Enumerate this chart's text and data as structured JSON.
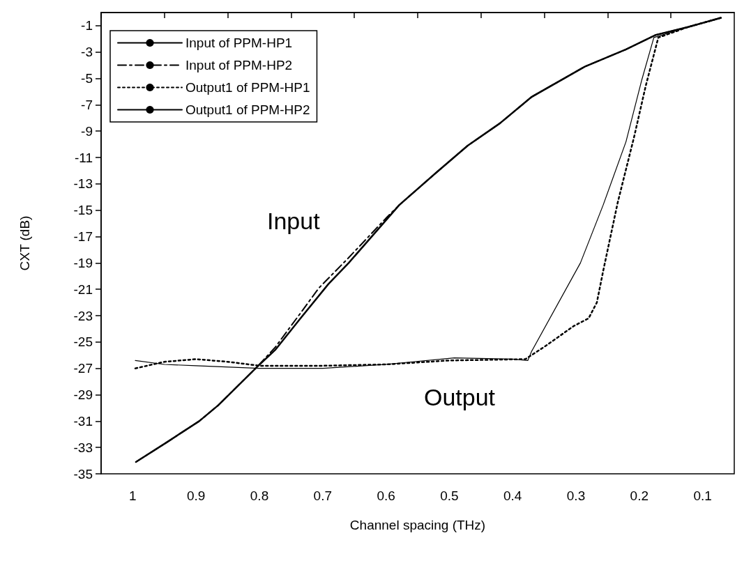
{
  "chart_data": {
    "type": "line",
    "xlabel": "Channel spacing (THz)",
    "ylabel": "CXT (dB)",
    "xlim": [
      1.05,
      0.05
    ],
    "ylim": [
      -35,
      0
    ],
    "xticks": [
      {
        "value": 1.05,
        "label": null
      },
      {
        "value": 1,
        "label": "1"
      },
      {
        "value": 0.95,
        "label": null
      },
      {
        "value": 0.9,
        "label": "0.9"
      },
      {
        "value": 0.85,
        "label": null
      },
      {
        "value": 0.8,
        "label": "0.8"
      },
      {
        "value": 0.75,
        "label": null
      },
      {
        "value": 0.7,
        "label": "0.7"
      },
      {
        "value": 0.65,
        "label": null
      },
      {
        "value": 0.6,
        "label": "0.6"
      },
      {
        "value": 0.55,
        "label": null
      },
      {
        "value": 0.5,
        "label": "0.5"
      },
      {
        "value": 0.45,
        "label": null
      },
      {
        "value": 0.4,
        "label": "0.4"
      },
      {
        "value": 0.35,
        "label": null
      },
      {
        "value": 0.3,
        "label": "0.3"
      },
      {
        "value": 0.25,
        "label": null
      },
      {
        "value": 0.2,
        "label": "0.2"
      },
      {
        "value": 0.15,
        "label": null
      },
      {
        "value": 0.1,
        "label": "0.1"
      }
    ],
    "yticks": [
      -35,
      -33,
      -31,
      -29,
      -27,
      -25,
      -23,
      -21,
      -19,
      -17,
      -15,
      -13,
      -11,
      -9,
      -7,
      -5,
      -3,
      -1
    ],
    "grid": false,
    "legend": "top left",
    "annotations": [
      "Input",
      "Output"
    ],
    "series": [
      {
        "name": "Input of PPM-HP1",
        "color": "#000000",
        "line_style": "solid",
        "x": [
          0.995,
          0.946,
          0.895,
          0.865,
          0.804,
          0.775,
          0.735,
          0.691,
          0.659,
          0.579,
          0.522,
          0.471,
          0.42,
          0.37,
          0.286,
          0.221,
          0.174,
          0.123,
          0.071
        ],
        "values": [
          -34.1,
          -32.6,
          -31.0,
          -29.8,
          -26.9,
          -25.6,
          -23.2,
          -20.6,
          -19.0,
          -14.6,
          -12.2,
          -10.1,
          -8.4,
          -6.4,
          -4.1,
          -2.8,
          -1.7,
          -1.1,
          -0.4
        ]
      },
      {
        "name": "Input of PPM-HP2",
        "color": "#000000",
        "line_style": "dashed",
        "x": [
          0.995,
          0.946,
          0.895,
          0.865,
          0.804,
          0.775,
          0.735,
          0.706,
          0.659,
          0.6,
          0.579,
          0.522,
          0.471,
          0.42,
          0.37,
          0.286,
          0.221,
          0.174,
          0.123,
          0.071
        ],
        "values": [
          -34.1,
          -32.6,
          -31.0,
          -29.8,
          -26.9,
          -25.4,
          -22.8,
          -20.9,
          -18.6,
          -15.6,
          -14.6,
          -12.2,
          -10.1,
          -8.4,
          -6.4,
          -4.1,
          -2.8,
          -1.7,
          -1.1,
          -0.4
        ]
      },
      {
        "name": "Output1 of PPM-HP1",
        "color": "#000000",
        "line_style": "dotted",
        "x": [
          0.996,
          0.95,
          0.9,
          0.85,
          0.8,
          0.7,
          0.6,
          0.5,
          0.38,
          0.348,
          0.304,
          0.28,
          0.267,
          0.257,
          0.234,
          0.208,
          0.19,
          0.177,
          0.17,
          0.123,
          0.071
        ],
        "values": [
          -27.0,
          -26.5,
          -26.3,
          -26.5,
          -26.8,
          -26.8,
          -26.7,
          -26.4,
          -26.3,
          -25.3,
          -23.8,
          -23.2,
          -22.0,
          -19.6,
          -14.4,
          -9.4,
          -5.6,
          -3.2,
          -1.9,
          -1.1,
          -0.4
        ]
      },
      {
        "name": "Output1 of PPM-HP2",
        "color": "#000000",
        "line_style": "solid",
        "x": [
          0.996,
          0.95,
          0.9,
          0.8,
          0.7,
          0.601,
          0.492,
          0.4,
          0.376,
          0.37,
          0.293,
          0.257,
          0.221,
          0.196,
          0.177,
          0.123,
          0.071
        ],
        "values": [
          -26.4,
          -26.7,
          -26.8,
          -27.0,
          -27.0,
          -26.7,
          -26.2,
          -26.3,
          -26.4,
          -25.7,
          -19.0,
          -14.6,
          -9.8,
          -5.1,
          -1.9,
          -1.1,
          -0.4
        ]
      }
    ]
  }
}
